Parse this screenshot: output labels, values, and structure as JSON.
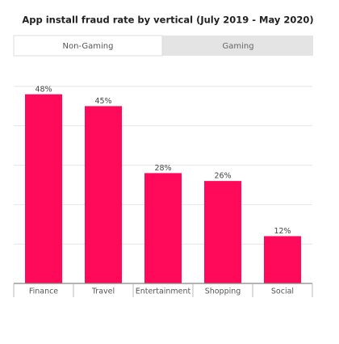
{
  "chart_data": {
    "type": "bar",
    "title": "App install fraud rate by vertical (July 2019 - May 2020)",
    "tabs": [
      "Non-Gaming",
      "Gaming"
    ],
    "categories": [
      "Finance",
      "Travel",
      "Entertainment",
      "Shopping",
      "Social"
    ],
    "values": [
      48,
      45,
      28,
      26,
      12
    ],
    "value_labels": [
      "48%",
      "45%",
      "28%",
      "26%",
      "12%"
    ],
    "color": "#ff0a5a",
    "ylim": [
      0,
      50
    ],
    "yticks": [
      10,
      20,
      30,
      40,
      50
    ],
    "grid": true
  }
}
